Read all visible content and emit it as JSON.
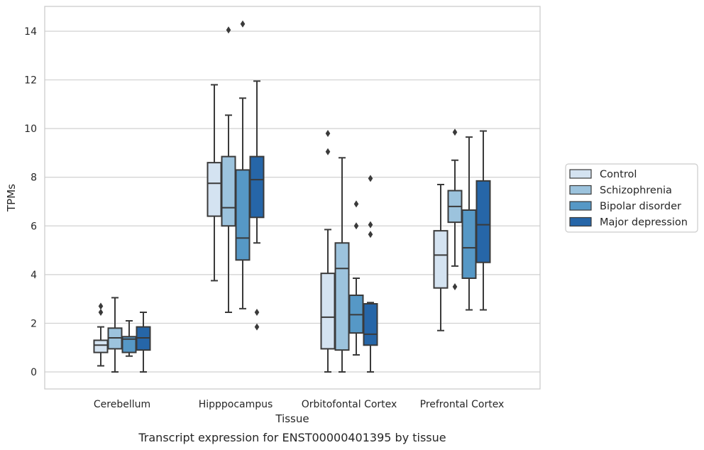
{
  "chart_data": {
    "type": "box",
    "caption": "Transcript expression for ENST00000401395 by tissue",
    "xlabel": "Tissue",
    "ylabel": "TPMs",
    "ylim": [
      -0.7,
      15.1
    ],
    "yticks": [
      0,
      2,
      4,
      6,
      8,
      10,
      12,
      14
    ],
    "ytick_labels": [
      "0",
      "2",
      "4",
      "6",
      "8",
      "10",
      "12",
      "14"
    ],
    "grid": true,
    "legend_position": "right",
    "categories": [
      "Cerebellum",
      "Hipppocampus",
      "Orbitofontal Cortex",
      "Prefrontal Cortex"
    ],
    "series": [
      {
        "name": "Control",
        "color": "#d4e3f1",
        "boxes": [
          {
            "whisker_low": 0.25,
            "q1": 0.8,
            "median": 1.1,
            "q3": 1.3,
            "whisker_high": 1.85,
            "outliers": [
              2.45,
              2.7
            ]
          },
          {
            "whisker_low": 3.75,
            "q1": 6.4,
            "median": 7.75,
            "q3": 8.6,
            "whisker_high": 11.8,
            "outliers": []
          },
          {
            "whisker_low": 0.0,
            "q1": 0.95,
            "median": 2.25,
            "q3": 4.05,
            "whisker_high": 5.85,
            "outliers": [
              9.05,
              9.8
            ]
          },
          {
            "whisker_low": 1.7,
            "q1": 3.45,
            "median": 4.8,
            "q3": 5.8,
            "whisker_high": 7.7,
            "outliers": []
          }
        ]
      },
      {
        "name": "Schizophrenia",
        "color": "#9cc3dd",
        "boxes": [
          {
            "whisker_low": 0.0,
            "q1": 0.95,
            "median": 1.4,
            "q3": 1.8,
            "whisker_high": 3.05,
            "outliers": []
          },
          {
            "whisker_low": 2.45,
            "q1": 6.0,
            "median": 6.75,
            "q3": 8.85,
            "whisker_high": 10.55,
            "outliers": [
              14.05
            ]
          },
          {
            "whisker_low": 0.0,
            "q1": 0.9,
            "median": 4.25,
            "q3": 5.3,
            "whisker_high": 8.8,
            "outliers": []
          },
          {
            "whisker_low": 4.35,
            "q1": 6.15,
            "median": 6.8,
            "q3": 7.45,
            "whisker_high": 8.7,
            "outliers": [
              3.5,
              9.85
            ]
          }
        ]
      },
      {
        "name": "Bipolar disorder",
        "color": "#5698c6",
        "boxes": [
          {
            "whisker_low": 0.65,
            "q1": 0.8,
            "median": 1.35,
            "q3": 1.45,
            "whisker_high": 2.1,
            "outliers": []
          },
          {
            "whisker_low": 2.6,
            "q1": 4.6,
            "median": 5.5,
            "q3": 8.3,
            "whisker_high": 11.25,
            "outliers": [
              14.3
            ]
          },
          {
            "whisker_low": 0.7,
            "q1": 1.6,
            "median": 2.35,
            "q3": 3.15,
            "whisker_high": 3.85,
            "outliers": [
              6.0,
              6.9
            ]
          },
          {
            "whisker_low": 2.55,
            "q1": 3.85,
            "median": 5.1,
            "q3": 6.65,
            "whisker_high": 9.65,
            "outliers": []
          }
        ]
      },
      {
        "name": "Major depression",
        "color": "#2666a8",
        "boxes": [
          {
            "whisker_low": 0.0,
            "q1": 0.9,
            "median": 1.4,
            "q3": 1.85,
            "whisker_high": 2.45,
            "outliers": []
          },
          {
            "whisker_low": 5.3,
            "q1": 6.35,
            "median": 7.9,
            "q3": 8.85,
            "whisker_high": 11.95,
            "outliers": [
              1.85,
              2.45
            ]
          },
          {
            "whisker_low": 0.0,
            "q1": 1.1,
            "median": 1.55,
            "q3": 2.8,
            "whisker_high": 2.85,
            "outliers": [
              5.65,
              6.05,
              7.95
            ]
          },
          {
            "whisker_low": 2.55,
            "q1": 4.5,
            "median": 6.05,
            "q3": 7.85,
            "whisker_high": 9.9,
            "outliers": []
          }
        ]
      }
    ]
  }
}
